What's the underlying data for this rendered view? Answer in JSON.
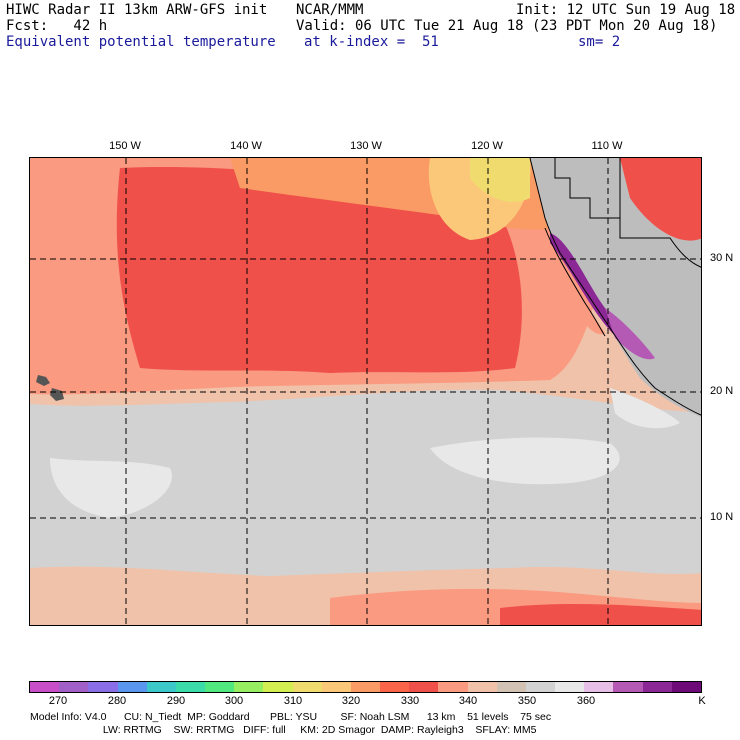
{
  "header": {
    "line1_left": "HIWC Radar II 13km ARW-GFS init",
    "line1_mid": "NCAR/MMM",
    "line1_right": "Init: 12 UTC Sun 19 Aug 18",
    "line2_left": "Fcst:   42 h",
    "line2_right": "Valid: 06 UTC Tue 21 Aug 18 (23 PDT Mon 20 Aug 18)",
    "line3_left": "Equivalent potential temperature",
    "line3_mid": "at k-index =  51",
    "line3_right": "sm= 2"
  },
  "longitude_labels": [
    "150 W",
    "140 W",
    "130 W",
    "120 W",
    "110 W"
  ],
  "latitude_labels": [
    "30 N",
    "20 N",
    "10 N"
  ],
  "colorbar": {
    "colors": [
      "#c84fc8",
      "#a060c8",
      "#8a6ee8",
      "#5a96ee",
      "#3cc8c8",
      "#3cdcaa",
      "#52e880",
      "#96ee60",
      "#d2ee50",
      "#f0dc6e",
      "#fac878",
      "#fa9a64",
      "#fa6448",
      "#f0504a",
      "#fa9a80",
      "#f0c2aa",
      "#d2c2b4",
      "#d2d2d2",
      "#e8e8e8",
      "#e6bee6",
      "#b45ab4",
      "#8c2896",
      "#6e0a78"
    ],
    "tick_labels": [
      "270",
      "280",
      "290",
      "300",
      "310",
      "320",
      "330",
      "340",
      "350",
      "360"
    ],
    "units": "K"
  },
  "footer": {
    "line1": "Model Info: V4.0      CU: N_Tiedt  MP: Goddard       PBL: YSU        SF: Noah LSM      13 km    51 levels    75 sec",
    "line2": "                         LW: RRTMG    SW: RRTMG   DIFF: full     KM: 2D Smagor  DAMP: Rayleigh3    SFLAY: MM5"
  }
}
